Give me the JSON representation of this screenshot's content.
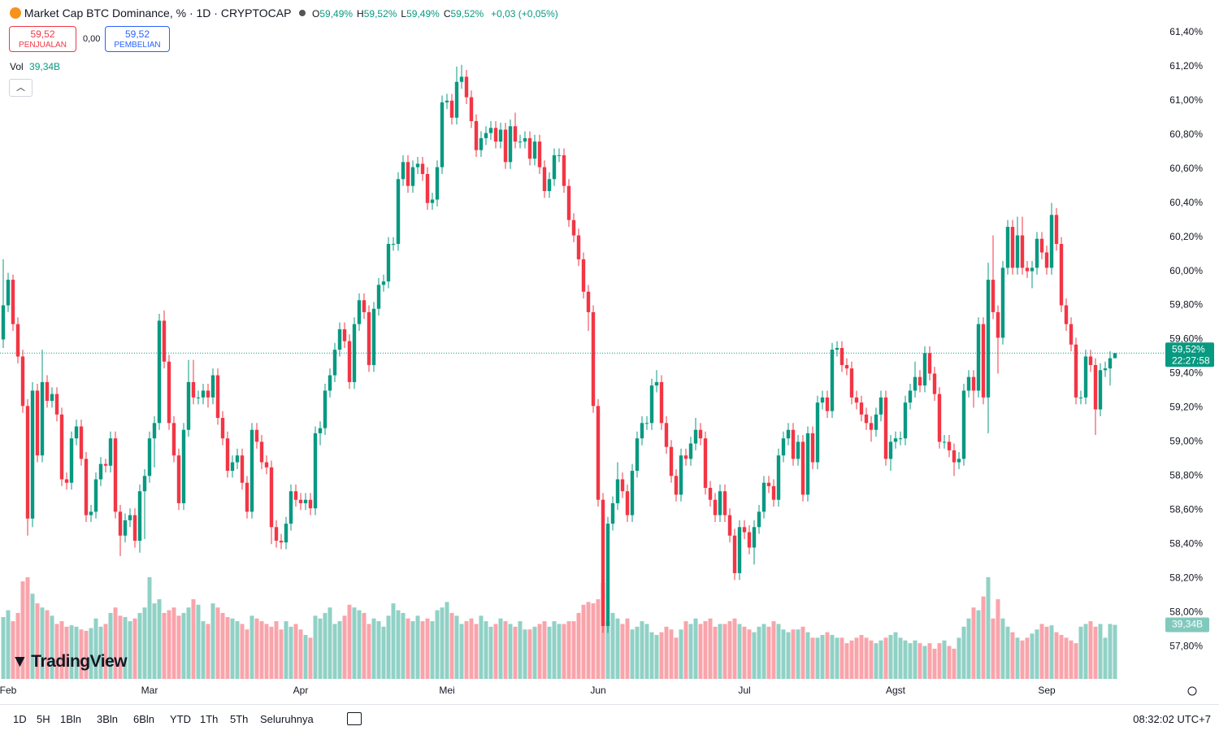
{
  "chart_data": {
    "type": "candlestick",
    "title": "Market Cap BTC Dominance, % · 1D · CRYPTOCAP",
    "ohlc_legend": [
      {
        "key": "O",
        "value": "59,49%"
      },
      {
        "key": "H",
        "value": "59,52%"
      },
      {
        "key": "L",
        "value": "59,49%"
      },
      {
        "key": "C",
        "value": "59,52%"
      }
    ],
    "change": "+0,03 (+0,05%)",
    "sell": {
      "price": "59,52",
      "label": "PENJUALAN"
    },
    "spread": "0,00",
    "buy": {
      "price": "59,52",
      "label": "PEMBELIAN"
    },
    "volume_title": "Vol",
    "volume_label": "39,34B",
    "last_price_label": "59,52%",
    "last_price": 59.52,
    "countdown": "22:27:58",
    "up_color": "#089981",
    "down_color": "#f23645",
    "ylim": [
      57.61,
      61.59
    ],
    "yticks": [
      {
        "value": 61.4,
        "label": "61,40%"
      },
      {
        "value": 61.2,
        "label": "61,20%"
      },
      {
        "value": 61.0,
        "label": "61,00%"
      },
      {
        "value": 60.8,
        "label": "60,80%"
      },
      {
        "value": 60.6,
        "label": "60,60%"
      },
      {
        "value": 60.4,
        "label": "60,40%"
      },
      {
        "value": 60.2,
        "label": "60,20%"
      },
      {
        "value": 60.0,
        "label": "60,00%"
      },
      {
        "value": 59.8,
        "label": "59,80%"
      },
      {
        "value": 59.6,
        "label": "59,60%"
      },
      {
        "value": 59.4,
        "label": "59,40%"
      },
      {
        "value": 59.2,
        "label": "59,20%"
      },
      {
        "value": 59.0,
        "label": "59,00%"
      },
      {
        "value": 58.8,
        "label": "58,80%"
      },
      {
        "value": 58.6,
        "label": "58,60%"
      },
      {
        "value": 58.4,
        "label": "58,40%"
      },
      {
        "value": 58.2,
        "label": "58,20%"
      },
      {
        "value": 58.0,
        "label": "58,00%"
      },
      {
        "value": 57.8,
        "label": "57,80%"
      }
    ],
    "x_labels": [
      {
        "index": 1,
        "label": "Feb"
      },
      {
        "index": 30,
        "label": "Mar"
      },
      {
        "index": 61,
        "label": "Apr"
      },
      {
        "index": 91,
        "label": "Mei"
      },
      {
        "index": 122,
        "label": "Jun"
      },
      {
        "index": 152,
        "label": "Jul"
      },
      {
        "index": 183,
        "label": "Agst"
      },
      {
        "index": 214,
        "label": "Sep"
      }
    ],
    "open": [
      59.6,
      59.8,
      59.95,
      59.69,
      59.5,
      59.21,
      58.55,
      59.3,
      58.92,
      59.35,
      59.24,
      59.28,
      59.16,
      58.78,
      58.76,
      59.02,
      59.09,
      58.9,
      58.57,
      58.59,
      58.78,
      58.87,
      58.86,
      59.02,
      58.59,
      58.45,
      58.54,
      58.57,
      58.42,
      58.71,
      58.8,
      59.02,
      59.11,
      59.71,
      59.47,
      59.11,
      58.92,
      58.64,
      59.07,
      59.35,
      59.26,
      59.26,
      59.3,
      59.26,
      59.39,
      59.14,
      59.02,
      58.83,
      58.88,
      58.92,
      58.76,
      58.59,
      59.07,
      59.0,
      58.88,
      58.85,
      58.5,
      58.42,
      58.41,
      58.52,
      58.71,
      58.66,
      58.64,
      58.66,
      58.61,
      59.05,
      59.08,
      59.3,
      59.39,
      59.54,
      59.66,
      59.59,
      59.35,
      59.69,
      59.83,
      59.76,
      59.45,
      59.78,
      59.92,
      59.94,
      60.16,
      60.16,
      60.54,
      60.64,
      60.5,
      60.61,
      60.63,
      60.57,
      60.4,
      60.42,
      60.61,
      60.99,
      61.0,
      60.9,
      61.11,
      61.14,
      61.02,
      60.88,
      60.71,
      60.78,
      60.81,
      60.84,
      60.76,
      60.83,
      60.64,
      60.85,
      60.76,
      60.76,
      60.78,
      60.66,
      60.76,
      60.61,
      60.47,
      60.54,
      60.68,
      60.68,
      60.5,
      60.3,
      60.21,
      60.07,
      59.88,
      59.76,
      59.21,
      58.66,
      57.92,
      58.52,
      58.64,
      58.78,
      58.71,
      58.57,
      58.83,
      59.02,
      59.11,
      59.11,
      59.33,
      59.35,
      59.11,
      58.97,
      58.8,
      58.69,
      58.92,
      58.9,
      58.99,
      59.07,
      59.02,
      58.73,
      58.66,
      58.57,
      58.71,
      58.57,
      58.45,
      58.23,
      58.5,
      58.47,
      58.38,
      58.5,
      58.59,
      58.76,
      58.74,
      58.66,
      58.92,
      59.02,
      59.07,
      58.9,
      59.0,
      58.69,
      59.05,
      58.88,
      59.23,
      59.26,
      59.18,
      59.54,
      59.55,
      59.45,
      59.43,
      59.26,
      59.23,
      59.16,
      59.11,
      59.07,
      59.16,
      59.26,
      58.9,
      59.0,
      59.02,
      59.02,
      59.23,
      59.3,
      59.38,
      59.33,
      59.52,
      59.4,
      59.28,
      59.0,
      59.0,
      58.95,
      58.88,
      58.9,
      59.3,
      59.38,
      59.3,
      59.69,
      59.26,
      59.95,
      59.76,
      59.61,
      60.02,
      60.26,
      60.02,
      60.21,
      60.02,
      60.0,
      60.02,
      60.19,
      60.11,
      60.02,
      60.33,
      60.16,
      59.8,
      59.69,
      59.57,
      59.26,
      59.26,
      59.5,
      59.45,
      59.19,
      59.42,
      59.43,
      59.49
    ],
    "high": [
      60.07,
      59.99,
      59.98,
      59.73,
      59.54,
      59.25,
      59.35,
      59.34,
      59.54,
      59.39,
      59.32,
      59.32,
      59.2,
      58.82,
      59.06,
      59.13,
      59.13,
      58.94,
      58.63,
      58.82,
      58.91,
      58.9,
      59.06,
      59.06,
      58.63,
      58.58,
      58.61,
      58.61,
      58.75,
      58.84,
      59.06,
      59.15,
      59.75,
      59.77,
      59.51,
      59.15,
      58.96,
      59.11,
      59.48,
      59.48,
      59.3,
      59.34,
      59.34,
      59.43,
      59.43,
      59.18,
      59.06,
      58.92,
      58.96,
      58.96,
      58.8,
      59.11,
      59.11,
      59.04,
      58.92,
      58.89,
      58.54,
      58.46,
      58.56,
      58.75,
      58.75,
      58.7,
      58.7,
      58.7,
      59.09,
      59.12,
      59.34,
      59.43,
      59.58,
      59.7,
      59.7,
      59.63,
      59.73,
      59.87,
      59.87,
      59.8,
      59.82,
      59.96,
      59.98,
      60.2,
      60.2,
      60.58,
      60.68,
      60.68,
      60.65,
      60.67,
      60.67,
      60.61,
      60.46,
      60.65,
      61.03,
      61.04,
      61.04,
      61.2,
      61.21,
      61.18,
      61.06,
      60.92,
      60.82,
      60.85,
      60.88,
      60.88,
      60.87,
      60.87,
      60.89,
      60.93,
      60.8,
      60.82,
      60.82,
      60.8,
      60.8,
      60.65,
      60.58,
      60.72,
      60.72,
      60.72,
      60.54,
      60.34,
      60.25,
      60.11,
      59.92,
      59.8,
      59.25,
      58.7,
      58.56,
      58.68,
      58.88,
      58.82,
      58.75,
      58.87,
      59.06,
      59.15,
      59.15,
      59.37,
      59.42,
      59.39,
      59.15,
      59.01,
      58.84,
      58.96,
      58.96,
      59.03,
      59.14,
      59.11,
      59.06,
      58.77,
      58.7,
      58.75,
      58.75,
      58.61,
      58.49,
      58.54,
      58.54,
      58.51,
      58.54,
      58.63,
      58.8,
      58.8,
      58.78,
      58.96,
      59.06,
      59.11,
      59.11,
      59.04,
      59.04,
      59.09,
      59.09,
      59.27,
      59.3,
      59.3,
      59.58,
      59.59,
      59.59,
      59.49,
      59.47,
      59.3,
      59.27,
      59.2,
      59.15,
      59.2,
      59.3,
      59.3,
      59.04,
      59.06,
      59.06,
      59.27,
      59.34,
      59.47,
      59.42,
      59.56,
      59.56,
      59.44,
      59.32,
      59.04,
      59.04,
      58.99,
      58.94,
      59.34,
      59.42,
      59.42,
      59.73,
      59.73,
      60.05,
      60.21,
      59.8,
      60.06,
      60.3,
      60.3,
      60.32,
      60.32,
      60.06,
      60.06,
      60.23,
      60.23,
      60.15,
      60.4,
      60.37,
      60.2,
      59.84,
      59.73,
      59.61,
      59.3,
      59.54,
      59.54,
      59.49,
      59.46,
      59.47,
      59.53,
      59.52
    ],
    "low": [
      59.55,
      59.76,
      59.65,
      59.46,
      59.17,
      58.45,
      58.5,
      58.88,
      58.88,
      59.2,
      59.2,
      59.12,
      58.74,
      58.72,
      58.72,
      58.98,
      58.86,
      58.53,
      58.53,
      58.55,
      58.74,
      58.82,
      58.82,
      58.55,
      58.33,
      58.41,
      58.5,
      58.38,
      58.35,
      58.43,
      58.76,
      58.85,
      59.07,
      59.43,
      59.07,
      58.88,
      58.6,
      58.6,
      59.03,
      59.22,
      59.22,
      59.22,
      59.2,
      59.22,
      59.1,
      58.98,
      58.79,
      58.79,
      58.84,
      58.72,
      58.55,
      58.55,
      58.96,
      58.84,
      58.81,
      58.4,
      58.38,
      58.37,
      58.37,
      58.48,
      58.62,
      58.6,
      58.6,
      58.57,
      58.57,
      58.98,
      59.04,
      59.26,
      59.35,
      59.5,
      59.55,
      59.31,
      59.31,
      59.65,
      59.72,
      59.41,
      59.41,
      59.74,
      59.88,
      59.9,
      60.12,
      60.12,
      60.5,
      60.46,
      60.46,
      60.57,
      60.53,
      60.36,
      60.36,
      60.38,
      60.57,
      60.95,
      60.86,
      60.86,
      61.07,
      60.98,
      60.84,
      60.67,
      60.67,
      60.74,
      60.77,
      60.72,
      60.72,
      60.6,
      60.6,
      60.72,
      60.72,
      60.72,
      60.62,
      60.62,
      60.57,
      60.43,
      60.43,
      60.5,
      60.64,
      60.46,
      60.26,
      60.17,
      60.03,
      59.84,
      59.65,
      59.17,
      58.62,
      57.88,
      57.88,
      58.48,
      58.6,
      58.67,
      58.53,
      58.53,
      58.79,
      58.98,
      59.07,
      59.07,
      59.29,
      59.07,
      58.93,
      58.76,
      58.65,
      58.65,
      58.86,
      58.86,
      58.95,
      58.98,
      58.69,
      58.62,
      58.53,
      58.53,
      58.53,
      58.41,
      58.19,
      58.19,
      58.43,
      58.34,
      58.28,
      58.46,
      58.55,
      58.7,
      58.62,
      58.62,
      58.88,
      58.98,
      58.86,
      58.86,
      58.65,
      58.65,
      58.84,
      58.84,
      59.19,
      59.14,
      59.14,
      59.5,
      59.41,
      59.39,
      59.22,
      59.19,
      59.12,
      59.07,
      59.0,
      59.03,
      59.12,
      58.86,
      58.83,
      58.96,
      58.98,
      58.98,
      59.19,
      59.26,
      59.29,
      59.29,
      59.36,
      59.24,
      58.96,
      58.96,
      58.91,
      58.8,
      58.84,
      58.86,
      59.26,
      59.2,
      59.26,
      59.22,
      59.05,
      59.72,
      59.4,
      59.57,
      59.98,
      59.98,
      59.98,
      59.98,
      59.96,
      59.9,
      59.98,
      60.07,
      59.98,
      59.98,
      60.12,
      59.76,
      59.65,
      59.53,
      59.22,
      59.22,
      59.22,
      59.41,
      59.04,
      59.15,
      59.38,
      59.33,
      59.49
    ],
    "close": [
      59.8,
      59.95,
      59.69,
      59.5,
      59.21,
      58.55,
      59.3,
      58.92,
      59.35,
      59.24,
      59.28,
      59.16,
      58.78,
      58.76,
      59.02,
      59.09,
      58.9,
      58.57,
      58.59,
      58.78,
      58.87,
      58.86,
      59.02,
      58.59,
      58.45,
      58.54,
      58.57,
      58.42,
      58.71,
      58.8,
      59.02,
      59.11,
      59.71,
      59.47,
      59.11,
      58.92,
      58.64,
      59.07,
      59.35,
      59.26,
      59.26,
      59.3,
      59.26,
      59.39,
      59.14,
      59.02,
      58.83,
      58.88,
      58.92,
      58.76,
      58.59,
      59.07,
      59.0,
      58.88,
      58.85,
      58.5,
      58.42,
      58.41,
      58.52,
      58.71,
      58.66,
      58.64,
      58.66,
      58.61,
      59.05,
      59.08,
      59.3,
      59.39,
      59.54,
      59.66,
      59.59,
      59.35,
      59.69,
      59.83,
      59.76,
      59.45,
      59.78,
      59.92,
      59.94,
      60.16,
      60.16,
      60.54,
      60.64,
      60.5,
      60.61,
      60.63,
      60.57,
      60.4,
      60.42,
      60.61,
      60.99,
      61.0,
      60.9,
      61.11,
      61.14,
      61.02,
      60.88,
      60.71,
      60.78,
      60.81,
      60.84,
      60.76,
      60.83,
      60.64,
      60.85,
      60.76,
      60.76,
      60.78,
      60.66,
      60.76,
      60.61,
      60.47,
      60.54,
      60.68,
      60.68,
      60.5,
      60.3,
      60.21,
      60.07,
      59.88,
      59.76,
      59.21,
      58.66,
      57.92,
      58.52,
      58.64,
      58.78,
      58.71,
      58.57,
      58.83,
      59.02,
      59.11,
      59.11,
      59.33,
      59.35,
      59.11,
      58.97,
      58.8,
      58.69,
      58.92,
      58.9,
      58.99,
      59.07,
      59.02,
      58.73,
      58.66,
      58.57,
      58.71,
      58.57,
      58.45,
      58.23,
      58.5,
      58.47,
      58.38,
      58.5,
      58.59,
      58.76,
      58.74,
      58.66,
      58.92,
      59.02,
      59.07,
      58.9,
      59.0,
      58.69,
      59.05,
      58.88,
      59.23,
      59.26,
      59.18,
      59.54,
      59.55,
      59.45,
      59.43,
      59.26,
      59.23,
      59.16,
      59.11,
      59.07,
      59.16,
      59.26,
      58.9,
      59.0,
      59.02,
      59.02,
      59.23,
      59.3,
      59.38,
      59.33,
      59.52,
      59.4,
      59.28,
      59.0,
      59.0,
      58.95,
      58.88,
      58.9,
      59.3,
      59.38,
      59.3,
      59.69,
      59.26,
      59.95,
      59.76,
      59.61,
      60.02,
      60.26,
      60.02,
      60.21,
      60.02,
      60.0,
      60.02,
      60.19,
      60.11,
      60.02,
      60.33,
      60.16,
      59.8,
      59.69,
      59.57,
      59.26,
      59.26,
      59.5,
      59.45,
      59.19,
      59.42,
      59.43,
      59.49,
      59.52
    ],
    "volume": [
      45,
      50,
      42,
      48,
      71,
      74,
      62,
      55,
      52,
      50,
      46,
      40,
      42,
      38,
      39,
      38,
      36,
      35,
      37,
      44,
      38,
      40,
      48,
      52,
      46,
      45,
      42,
      44,
      48,
      52,
      74,
      55,
      58,
      48,
      50,
      52,
      46,
      48,
      52,
      58,
      54,
      42,
      40,
      55,
      52,
      48,
      45,
      44,
      42,
      40,
      36,
      46,
      44,
      42,
      40,
      38,
      42,
      36,
      42,
      38,
      40,
      36,
      32,
      30,
      46,
      44,
      48,
      52,
      40,
      42,
      46,
      54,
      52,
      50,
      48,
      40,
      44,
      42,
      38,
      46,
      55,
      50,
      48,
      44,
      42,
      46,
      42,
      44,
      42,
      50,
      52,
      56,
      48,
      46,
      40,
      42,
      44,
      40,
      46,
      42,
      38,
      40,
      44,
      42,
      40,
      38,
      42,
      36,
      36,
      38,
      40,
      42,
      38,
      42,
      40,
      40,
      42,
      42,
      48,
      54,
      56,
      55,
      58,
      70,
      42,
      48,
      44,
      40,
      44,
      36,
      38,
      42,
      40,
      34,
      32,
      34,
      38,
      36,
      30,
      36,
      42,
      40,
      44,
      40,
      42,
      44,
      38,
      40,
      40,
      42,
      44,
      40,
      38,
      36,
      34,
      38,
      40,
      38,
      42,
      40,
      36,
      34,
      36,
      36,
      38,
      34,
      30,
      30,
      32,
      34,
      32,
      30,
      30,
      26,
      28,
      30,
      32,
      30,
      28,
      26,
      28,
      30,
      32,
      34,
      30,
      28,
      26,
      28,
      26,
      24,
      26,
      22,
      26,
      28,
      24,
      22,
      30,
      38,
      44,
      52,
      50,
      60,
      74,
      44,
      58,
      44,
      38,
      34,
      30,
      28,
      30,
      33,
      36,
      40,
      38,
      39,
      34,
      32,
      30,
      28,
      26,
      38,
      40,
      42,
      38,
      40,
      30,
      40,
      39.34
    ],
    "logo": "TradingView",
    "ranges": [
      "1D",
      "5H",
      "1Bln",
      "3Bln",
      "6Bln",
      "YTD",
      "1Th",
      "5Th",
      "Seluruhnya"
    ],
    "clock": "08:32:02 UTC+7"
  }
}
